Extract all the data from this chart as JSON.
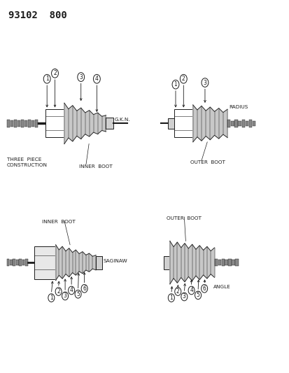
{
  "title_code": "93102  800",
  "bg_color": "#ffffff",
  "line_color": "#1a1a1a",
  "labels": {
    "three_piece": "THREE  PIECE\nCONSTRUCTION",
    "inner_boot_top": "INNER  BOOT",
    "gkn": "G.K.N.",
    "radius": "RADIUS",
    "outer_boot_top": "OUTER  BOOT",
    "inner_boot_bottom": "INNER  BOOT",
    "saginaw": "SAGINAW",
    "outer_boot_bottom": "OUTER  BOOT",
    "angle": "ANGLE"
  },
  "fig_w": 4.14,
  "fig_h": 5.33,
  "dpi": 100
}
